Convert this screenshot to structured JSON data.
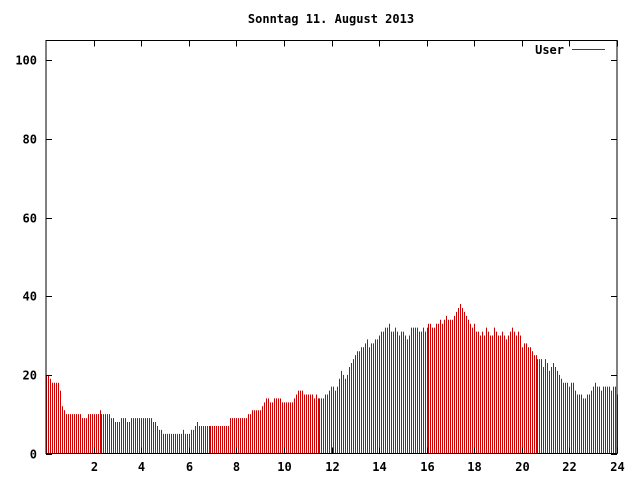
{
  "chart_data": {
    "type": "bar",
    "style": "impulses",
    "title": "Sonntag 11. August 2013",
    "xlabel": "",
    "ylabel": "",
    "xlim": [
      0,
      24
    ],
    "ylim": [
      0,
      105
    ],
    "xticks": [
      2,
      4,
      6,
      8,
      10,
      12,
      14,
      16,
      18,
      20,
      22,
      24
    ],
    "yticks": [
      0,
      20,
      40,
      60,
      80,
      100
    ],
    "grid": false,
    "legend_position": "top-right",
    "series": [
      {
        "name": "User",
        "color": "#cc0000",
        "x_start": 0,
        "x_step": 0.0833,
        "values": [
          20,
          20,
          19,
          18,
          18,
          18,
          18,
          16,
          12,
          11,
          10,
          10,
          10,
          10,
          10,
          10,
          10,
          10,
          9,
          9,
          9,
          10,
          10,
          10,
          10,
          10,
          10,
          11,
          10,
          10,
          10,
          10,
          10,
          9,
          9,
          8,
          8,
          8,
          9,
          9,
          9,
          8,
          8,
          9,
          9,
          9,
          9,
          9,
          9,
          9,
          9,
          9,
          9,
          9,
          8,
          8,
          7,
          6,
          6,
          5,
          5,
          5,
          5,
          5,
          5,
          5,
          5,
          5,
          5,
          6,
          5,
          5,
          5,
          6,
          6,
          7,
          8,
          7,
          7,
          7,
          7,
          7,
          7,
          7,
          7,
          7,
          7,
          7,
          7,
          7,
          7,
          7,
          7,
          9,
          9,
          9,
          9,
          9,
          9,
          9,
          9,
          9,
          10,
          10,
          11,
          11,
          11,
          11,
          11,
          12,
          13,
          14,
          14,
          13,
          13,
          14,
          14,
          14,
          14,
          13,
          13,
          13,
          13,
          13,
          13,
          14,
          15,
          16,
          16,
          16,
          15,
          15,
          15,
          15,
          15,
          14,
          15,
          14,
          14,
          14,
          14,
          15,
          15,
          16,
          17,
          17,
          16,
          17,
          19,
          21,
          20,
          19,
          20,
          22,
          23,
          24,
          25,
          26,
          26,
          27,
          27,
          28,
          29,
          27,
          28,
          28,
          29,
          29,
          30,
          31,
          31,
          32,
          32,
          33,
          31,
          31,
          32,
          31,
          30,
          31,
          31,
          30,
          29,
          30,
          32,
          32,
          32,
          32,
          31,
          31,
          32,
          31,
          32,
          33,
          33,
          32,
          32,
          33,
          33,
          34,
          33,
          34,
          35,
          34,
          34,
          34,
          35,
          36,
          37,
          38,
          37,
          36,
          35,
          34,
          33,
          32,
          33,
          31,
          31,
          30,
          31,
          30,
          32,
          31,
          30,
          30,
          32,
          31,
          30,
          30,
          31,
          30,
          29,
          30,
          31,
          32,
          31,
          30,
          31,
          30,
          27,
          28,
          28,
          27,
          27,
          26,
          25,
          25,
          24,
          24,
          24,
          22,
          24,
          23,
          21,
          22,
          23,
          22,
          21,
          20,
          19,
          18,
          18,
          18,
          17,
          18,
          18,
          16,
          15,
          15,
          15,
          14,
          14,
          15,
          15,
          16,
          17,
          18,
          17,
          17,
          16,
          17,
          17,
          17,
          17,
          16,
          17,
          17,
          15
        ]
      }
    ]
  }
}
